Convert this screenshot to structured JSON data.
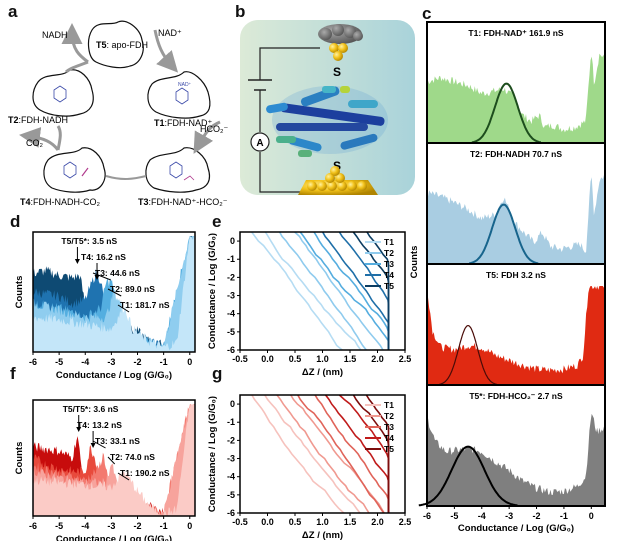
{
  "panels": {
    "a": {
      "letter": "a",
      "states": [
        {
          "id": "T5",
          "name": "apo-FDH"
        },
        {
          "id": "T1",
          "name": "FDH-NAD⁺"
        },
        {
          "id": "T3",
          "name": "FDH-NAD⁺-HCO₂⁻"
        },
        {
          "id": "T4",
          "name": "FDH-NADH-CO₂"
        },
        {
          "id": "T2",
          "name": "FDH-NADH"
        }
      ],
      "reagents": {
        "nadh": "NADH",
        "nad": "NAD⁺",
        "hco2": "HCO₂⁻",
        "co2": "CO₂"
      },
      "bound_labels": {
        "nadh": "NADH",
        "nad": "NAD⁺",
        "h2n": "H₂N"
      }
    },
    "b": {
      "letter": "b",
      "sulfur": "S",
      "ammeter": "A"
    },
    "c": {
      "letter": "c",
      "ylabel": "Counts",
      "xlabel": "Conductance / Log (G/G₀)"
    },
    "d": {
      "letter": "d"
    },
    "e": {
      "letter": "e"
    },
    "f": {
      "letter": "f"
    },
    "g": {
      "letter": "g"
    }
  },
  "chart_data": [
    {
      "id": "c",
      "type": "area",
      "xlabel": "Conductance / Log (G/G₀)",
      "ylabel": "Counts",
      "xlim": [
        -6,
        0.5
      ],
      "xticks": [
        "-6",
        "-5",
        "-4",
        "-3",
        "-2",
        "-1",
        "0"
      ],
      "subplots": [
        {
          "title": "T1: FDH-NAD⁺ 161.9 nS",
          "fill": "#9fd98a",
          "fit_color": "#1d4d1d",
          "peak_log": -3.1,
          "peak_ns": 161.9,
          "fit_sigma": 0.42,
          "hist": [
            [
              -6,
              0.62
            ],
            [
              -5.5,
              0.66
            ],
            [
              -5,
              0.62
            ],
            [
              -4.5,
              0.58
            ],
            [
              -4,
              0.5
            ],
            [
              -3.6,
              0.52
            ],
            [
              -3.2,
              0.55
            ],
            [
              -2.8,
              0.45
            ],
            [
              -2.5,
              0.28
            ],
            [
              -2.2,
              0.22
            ],
            [
              -1.9,
              0.28
            ],
            [
              -1.7,
              0.16
            ],
            [
              -1.4,
              0.18
            ],
            [
              -1,
              0.14
            ],
            [
              -0.6,
              0.16
            ],
            [
              -0.2,
              0.22
            ],
            [
              0,
              0.95
            ],
            [
              0.1,
              0.6
            ],
            [
              0.3,
              0.9
            ],
            [
              0.5,
              0.85
            ]
          ]
        },
        {
          "title": "T2: FDH-NADH 70.7 nS",
          "fill": "#a9cde2",
          "fit_color": "#17648c",
          "peak_log": -3.2,
          "peak_ns": 70.7,
          "fit_sigma": 0.42,
          "hist": [
            [
              -6,
              0.72
            ],
            [
              -5.5,
              0.68
            ],
            [
              -5,
              0.62
            ],
            [
              -4.5,
              0.55
            ],
            [
              -4,
              0.46
            ],
            [
              -3.5,
              0.5
            ],
            [
              -3.2,
              0.68
            ],
            [
              -2.8,
              0.42
            ],
            [
              -2.4,
              0.3
            ],
            [
              -2.1,
              0.22
            ],
            [
              -1.8,
              0.32
            ],
            [
              -1.5,
              0.18
            ],
            [
              -1.1,
              0.15
            ],
            [
              -0.7,
              0.18
            ],
            [
              -0.4,
              0.2
            ],
            [
              -0.2,
              0.12
            ],
            [
              0,
              0.92
            ],
            [
              0.1,
              0.5
            ],
            [
              0.3,
              0.85
            ],
            [
              0.5,
              0.9
            ]
          ]
        },
        {
          "title": "T5: FDH 3.2 nS",
          "fill": "#e02a12",
          "fit_color": "#4a0c08",
          "peak_log": -4.5,
          "peak_ns": 3.2,
          "fit_sigma": 0.35,
          "hist": [
            [
              -6,
              1
            ],
            [
              -5.8,
              0.55
            ],
            [
              -5.5,
              0.38
            ],
            [
              -5,
              0.36
            ],
            [
              -4.5,
              0.4
            ],
            [
              -4,
              0.38
            ],
            [
              -3.5,
              0.3
            ],
            [
              -3,
              0.25
            ],
            [
              -2.5,
              0.2
            ],
            [
              -2,
              0.16
            ],
            [
              -1.5,
              0.15
            ],
            [
              -1,
              0.16
            ],
            [
              -0.5,
              0.2
            ],
            [
              -0.3,
              0.3
            ],
            [
              -0.1,
              1
            ],
            [
              0.5,
              1
            ]
          ]
        },
        {
          "title": "T5*: FDH-HCO₂⁻ 2.7 nS",
          "fill": "#7f7f7f",
          "fit_color": "#000000",
          "peak_log": -4.5,
          "peak_ns": 2.7,
          "fit_sigma": 0.6,
          "hist": [
            [
              -6,
              0.9
            ],
            [
              -5.7,
              0.65
            ],
            [
              -5.3,
              0.55
            ],
            [
              -5,
              0.56
            ],
            [
              -4.5,
              0.58
            ],
            [
              -4,
              0.55
            ],
            [
              -3.5,
              0.45
            ],
            [
              -3,
              0.36
            ],
            [
              -2.5,
              0.25
            ],
            [
              -2,
              0.18
            ],
            [
              -1.5,
              0.14
            ],
            [
              -1,
              0.15
            ],
            [
              -0.5,
              0.2
            ],
            [
              -0.2,
              0.3
            ],
            [
              0,
              0.95
            ],
            [
              0.2,
              0.75
            ],
            [
              0.5,
              0.8
            ]
          ]
        }
      ]
    },
    {
      "id": "d",
      "type": "area",
      "xlabel": "Conductance / Log (G/G₀)",
      "ylabel": "Counts",
      "xlim": [
        -6,
        0.2
      ],
      "xticks": [
        "-6",
        "-5",
        "-4",
        "-3",
        "-2",
        "-1",
        "0"
      ],
      "series": [
        {
          "name": "T5",
          "color": "#0e4a73",
          "hist": [
            [
              -6,
              0.68
            ],
            [
              -5.5,
              0.7
            ],
            [
              -5,
              0.66
            ],
            [
              -4.5,
              0.64
            ],
            [
              -4.2,
              0.66
            ],
            [
              -4,
              0.4
            ],
            [
              -3.5,
              0.28
            ],
            [
              -3,
              0.22
            ],
            [
              -2,
              0.18
            ],
            [
              -1.5,
              0.08
            ],
            [
              -1,
              0.06
            ],
            [
              -0.5,
              0.14
            ],
            [
              -0.2,
              0.12
            ],
            [
              0,
              1
            ]
          ]
        },
        {
          "name": "T4",
          "color": "#1f73b0",
          "hist": [
            [
              -6,
              0.52
            ],
            [
              -5.5,
              0.5
            ],
            [
              -5,
              0.48
            ],
            [
              -4.5,
              0.42
            ],
            [
              -4,
              0.45
            ],
            [
              -3.6,
              0.68
            ],
            [
              -3.4,
              0.62
            ],
            [
              -3.2,
              0.3
            ],
            [
              -2.5,
              0.18
            ],
            [
              -1.5,
              0.08
            ],
            [
              -1,
              0.05
            ],
            [
              -0.5,
              0.12
            ],
            [
              0,
              1
            ]
          ]
        },
        {
          "name": "T3",
          "color": "#53aee0",
          "hist": [
            [
              -6,
              0.42
            ],
            [
              -5,
              0.38
            ],
            [
              -4,
              0.3
            ],
            [
              -3.4,
              0.38
            ],
            [
              -3.2,
              0.6
            ],
            [
              -3,
              0.62
            ],
            [
              -2.8,
              0.4
            ],
            [
              -2.6,
              0.2
            ],
            [
              -2,
              0.12
            ],
            [
              -1,
              0.05
            ],
            [
              0,
              1
            ]
          ]
        },
        {
          "name": "T2",
          "color": "#8fcdef",
          "hist": [
            [
              -6,
              0.42
            ],
            [
              -5,
              0.36
            ],
            [
              -4,
              0.3
            ],
            [
              -3.2,
              0.3
            ],
            [
              -2.9,
              0.52
            ],
            [
              -2.6,
              0.4
            ],
            [
              -2.3,
              0.15
            ],
            [
              -1.5,
              0.08
            ],
            [
              -1,
              0.05
            ],
            [
              0,
              1
            ]
          ]
        },
        {
          "name": "T1",
          "color": "#c4e6f9",
          "hist": [
            [
              -6,
              0.3
            ],
            [
              -5,
              0.28
            ],
            [
              -4,
              0.24
            ],
            [
              -3,
              0.2
            ],
            [
              -2.5,
              0.4
            ],
            [
              -2.2,
              0.2
            ],
            [
              -1.5,
              0.08
            ],
            [
              -1,
              0.04
            ],
            [
              -0.5,
              0.08
            ],
            [
              0,
              1
            ]
          ]
        }
      ],
      "annotations": [
        {
          "text": "T5/T5*: 3.5 nS",
          "x": -4.3
        },
        {
          "text": "T4: 16.2 nS",
          "x": -3.55
        },
        {
          "text": "T3: 44.6 nS",
          "x": -3.1
        },
        {
          "text": "T2: 89.0 nS",
          "x": -2.7
        },
        {
          "text": "T1: 181.7 nS",
          "x": -2.4
        }
      ]
    },
    {
      "id": "e",
      "type": "line",
      "xlabel": "ΔZ / (nm)",
      "ylabel": "Conductance / Log (G/G₀)",
      "xlim": [
        -0.5,
        2.5
      ],
      "ylim": [
        -6,
        0.5
      ],
      "xticks": [
        "-0.5",
        "0.0",
        "0.5",
        "1.0",
        "1.5",
        "2.0",
        "2.5"
      ],
      "yticks": [
        "0",
        "-1",
        "-2",
        "-3",
        "-4",
        "-5",
        "-6"
      ],
      "legend": "top-right",
      "series": [
        {
          "name": "T1",
          "color": "#b5dcf3",
          "starts": [
            -0.35,
            -0.1
          ]
        },
        {
          "name": "T2",
          "color": "#8fcbee",
          "starts": [
            0.15,
            0.4
          ]
        },
        {
          "name": "T3",
          "color": "#55addf",
          "starts": [
            0.55,
            0.8
          ]
        },
        {
          "name": "T4",
          "color": "#1f6fa8",
          "starts": [
            0.95,
            1.2
          ]
        },
        {
          "name": "T5",
          "color": "#0c3d62",
          "starts": [
            1.5,
            1.75
          ]
        }
      ]
    },
    {
      "id": "f",
      "type": "area",
      "xlabel": "Conductance / Log (G/G₀)",
      "ylabel": "Counts",
      "xlim": [
        -6,
        0.2
      ],
      "xticks": [
        "-6",
        "-5",
        "-4",
        "-3",
        "-2",
        "-1",
        "0"
      ],
      "series": [
        {
          "name": "T5",
          "color": "#c70c0c",
          "hist": [
            [
              -6,
              0.62
            ],
            [
              -5.5,
              0.6
            ],
            [
              -5,
              0.58
            ],
            [
              -4.5,
              0.52
            ],
            [
              -4.3,
              0.72
            ],
            [
              -4.1,
              0.35
            ],
            [
              -3.5,
              0.25
            ],
            [
              -2.5,
              0.18
            ],
            [
              -1.5,
              0.08
            ],
            [
              -1,
              0.03
            ],
            [
              -0.5,
              0.14
            ],
            [
              -0.3,
              0.1
            ],
            [
              0,
              1
            ]
          ]
        },
        {
          "name": "T4",
          "color": "#e84a3c",
          "hist": [
            [
              -6,
              0.52
            ],
            [
              -5.5,
              0.46
            ],
            [
              -5,
              0.42
            ],
            [
              -4.5,
              0.4
            ],
            [
              -4,
              0.4
            ],
            [
              -3.8,
              0.62
            ],
            [
              -3.6,
              0.5
            ],
            [
              -3.4,
              0.25
            ],
            [
              -2.5,
              0.15
            ],
            [
              -1.5,
              0.06
            ],
            [
              -1,
              0.03
            ],
            [
              -0.5,
              0.12
            ],
            [
              0,
              1
            ]
          ]
        },
        {
          "name": "T3",
          "color": "#f37a70",
          "hist": [
            [
              -6,
              0.45
            ],
            [
              -5,
              0.38
            ],
            [
              -4,
              0.32
            ],
            [
              -3.5,
              0.42
            ],
            [
              -3.3,
              0.56
            ],
            [
              -3.1,
              0.3
            ],
            [
              -2.5,
              0.15
            ],
            [
              -1.5,
              0.06
            ],
            [
              -1,
              0.03
            ],
            [
              0,
              1
            ]
          ]
        },
        {
          "name": "T2",
          "color": "#f7a39c",
          "hist": [
            [
              -6,
              0.4
            ],
            [
              -5,
              0.34
            ],
            [
              -4,
              0.3
            ],
            [
              -3.2,
              0.3
            ],
            [
              -3,
              0.48
            ],
            [
              -2.8,
              0.3
            ],
            [
              -2.3,
              0.15
            ],
            [
              -1.5,
              0.06
            ],
            [
              -1,
              0.03
            ],
            [
              0,
              1
            ]
          ]
        },
        {
          "name": "T1",
          "color": "#fbcbc6",
          "hist": [
            [
              -6,
              0.32
            ],
            [
              -5,
              0.3
            ],
            [
              -4,
              0.28
            ],
            [
              -3,
              0.26
            ],
            [
              -2.5,
              0.4
            ],
            [
              -2,
              0.22
            ],
            [
              -1.5,
              0.08
            ],
            [
              -1,
              0.02
            ],
            [
              -0.5,
              0.06
            ],
            [
              0,
              1
            ]
          ]
        }
      ],
      "annotations": [
        {
          "text": "T5/T5*: 3.6 nS",
          "x": -4.25
        },
        {
          "text": "T4: 13.2 nS",
          "x": -3.7
        },
        {
          "text": "T3: 33.1 nS",
          "x": -3.3
        },
        {
          "text": "T2: 74.0 nS",
          "x": -2.95
        },
        {
          "text": "T1: 190.2 nS",
          "x": -2.4
        }
      ]
    },
    {
      "id": "g",
      "type": "line",
      "xlabel": "ΔZ / (nm)",
      "ylabel": "Conductance / Log (G/G₀)",
      "xlim": [
        -0.5,
        2.5
      ],
      "ylim": [
        -6,
        0.5
      ],
      "xticks": [
        "-0.5",
        "0.0",
        "0.5",
        "1.0",
        "1.5",
        "2.0",
        "2.5"
      ],
      "yticks": [
        "0",
        "-1",
        "-2",
        "-3",
        "-4",
        "-5",
        "-6"
      ],
      "legend": "top-right",
      "series": [
        {
          "name": "T1",
          "color": "#f6c2bd",
          "starts": [
            -0.35,
            -0.1
          ]
        },
        {
          "name": "T2",
          "color": "#f09990",
          "starts": [
            0.1,
            0.35
          ]
        },
        {
          "name": "T3",
          "color": "#e0645a",
          "starts": [
            0.5,
            0.8
          ]
        },
        {
          "name": "T4",
          "color": "#c01b1b",
          "starts": [
            1.0,
            1.25
          ]
        },
        {
          "name": "T5",
          "color": "#7d0d0d",
          "starts": [
            1.5,
            1.75
          ]
        }
      ]
    }
  ]
}
